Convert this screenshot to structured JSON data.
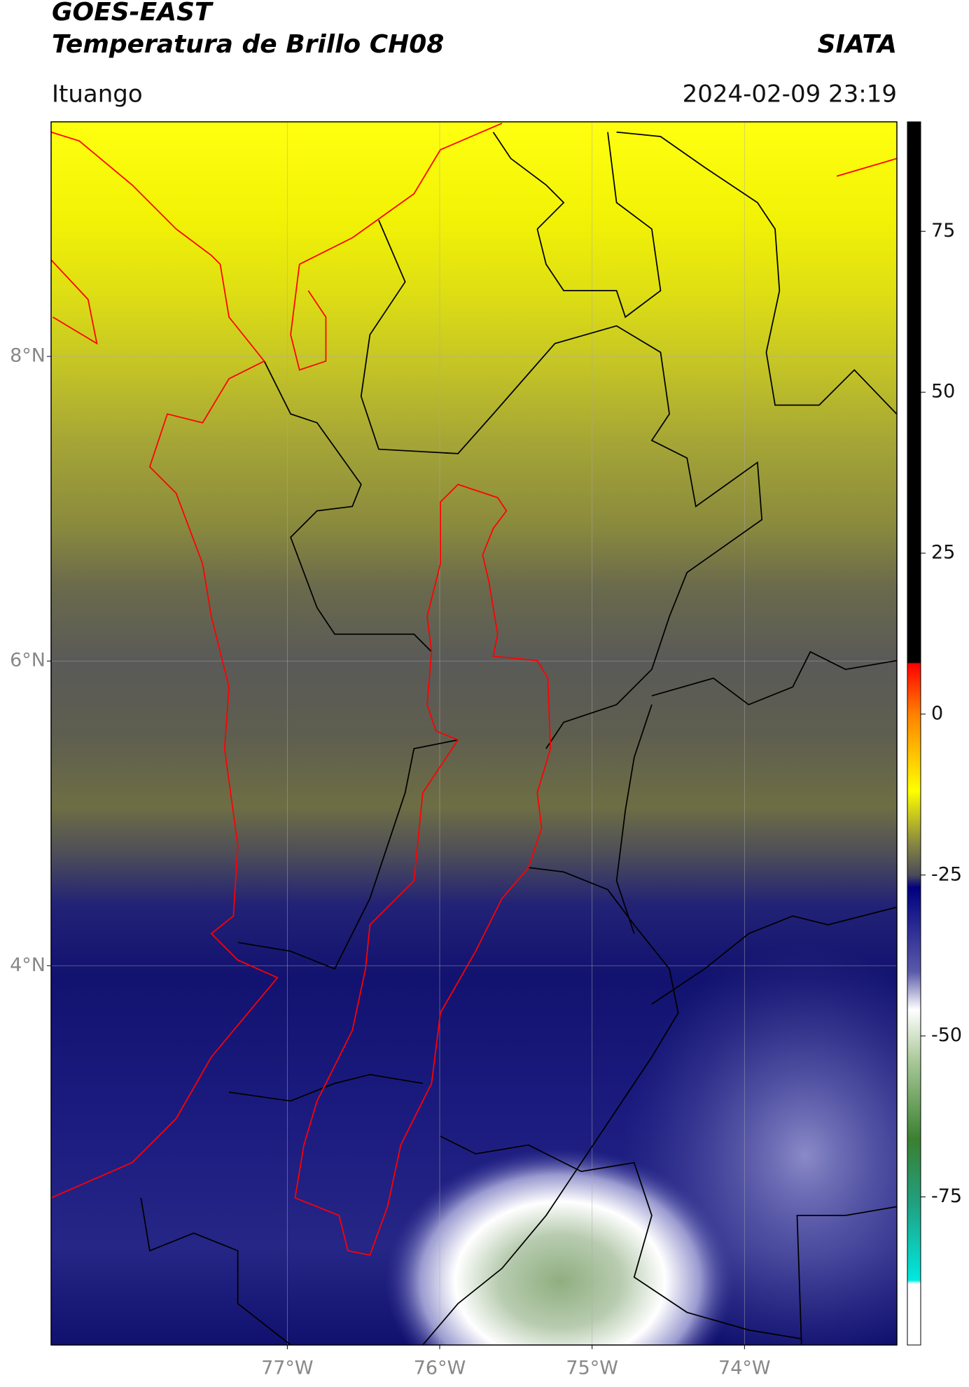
{
  "chart_data": {
    "type": "map",
    "title": "GOES-EAST",
    "subtitle": "Temperatura de Brillo CH08",
    "source": "SIATA",
    "location": "Ituango",
    "date": "2024-02-09 23:19",
    "xlim": [
      -78.55,
      -73.0
    ],
    "ylim": [
      1.51,
      9.54
    ],
    "xticks": [
      {
        "value": -77,
        "label": "77°W"
      },
      {
        "value": -76,
        "label": "76°W"
      },
      {
        "value": -75,
        "label": "75°W"
      },
      {
        "value": -74,
        "label": "74°W"
      }
    ],
    "yticks": [
      {
        "value": 4,
        "label": "4°N"
      },
      {
        "value": 6,
        "label": "6°N"
      },
      {
        "value": 8,
        "label": "8°N"
      }
    ],
    "grid": true,
    "colorbar": {
      "lim": [
        -98,
        92
      ],
      "ticks": [
        -75,
        -50,
        -25,
        0,
        25,
        50,
        75
      ]
    }
  }
}
